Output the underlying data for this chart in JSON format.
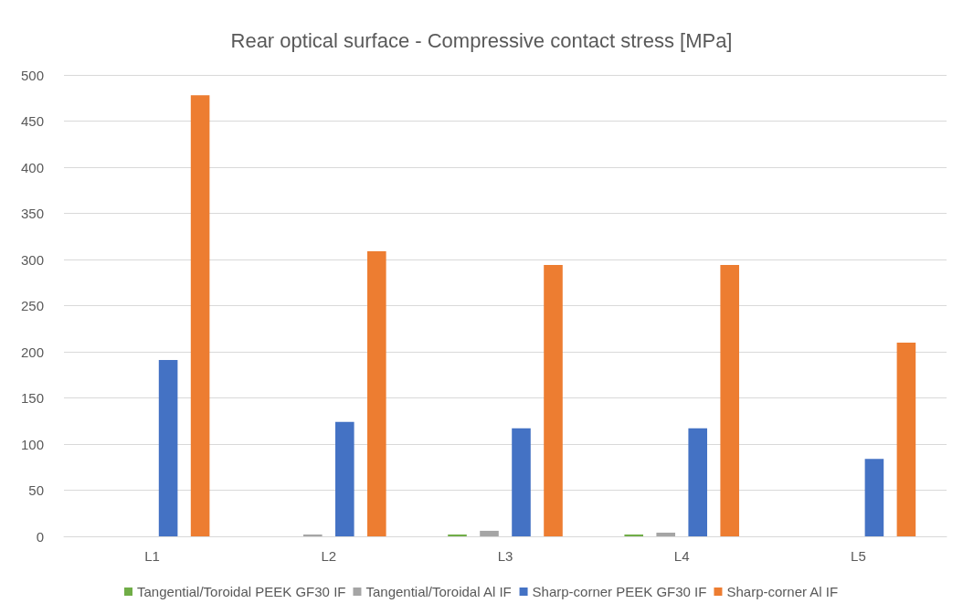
{
  "chart_data": {
    "type": "bar",
    "title": "Rear optical surface - Compressive contact stress [MPa]",
    "categories": [
      "L1",
      "L2",
      "L3",
      "L4",
      "L5"
    ],
    "series": [
      {
        "name": "Tangential/Toroidal PEEK GF30 IF",
        "color": "#70ad47",
        "values": [
          0,
          0,
          2,
          2,
          0
        ]
      },
      {
        "name": "Tangential/Toroidal Al IF",
        "color": "#a5a5a5",
        "values": [
          0,
          2,
          6,
          4,
          0
        ]
      },
      {
        "name": "Sharp-corner PEEK GF30 IF",
        "color": "#4472c4",
        "values": [
          191,
          124,
          117,
          117,
          84
        ]
      },
      {
        "name": "Sharp-corner Al IF",
        "color": "#ed7d31",
        "values": [
          478,
          309,
          294,
          294,
          210
        ]
      }
    ],
    "ylim": [
      0,
      500
    ],
    "yticks": [
      0,
      50,
      100,
      150,
      200,
      250,
      300,
      350,
      400,
      450,
      500
    ],
    "grid": "y",
    "legend": "bottom"
  }
}
